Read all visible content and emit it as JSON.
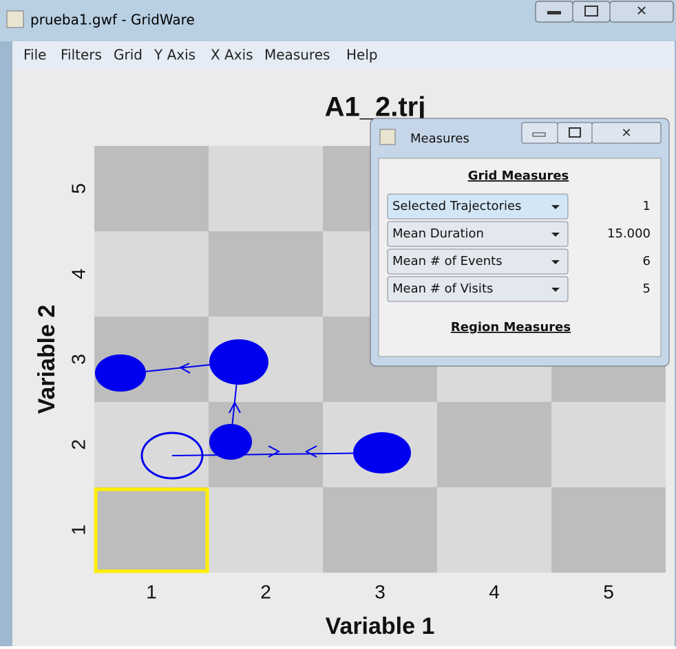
{
  "window": {
    "title": "prueba1.gwf - GridWare"
  },
  "menu": {
    "items": [
      "File",
      "Filters",
      "Grid",
      "Y Axis",
      "X Axis",
      "Measures",
      "Help"
    ]
  },
  "plot": {
    "title": "A1_2.trj",
    "x_axis": {
      "label": "Variable 1",
      "ticks": [
        "1",
        "2",
        "3",
        "4",
        "5"
      ]
    },
    "y_axis": {
      "label": "Variable 2",
      "ticks": [
        "1",
        "2",
        "3",
        "4",
        "5"
      ]
    }
  },
  "measures_dialog": {
    "title": "Measures",
    "grid_heading": "Grid Measures",
    "rows": [
      {
        "label": "Selected Trajectories",
        "value": "1"
      },
      {
        "label": "Mean Duration",
        "value": "15.000"
      },
      {
        "label": "Mean # of Events",
        "value": "6"
      },
      {
        "label": "Mean # of Visits",
        "value": "5"
      }
    ],
    "region_heading": "Region Measures"
  }
}
